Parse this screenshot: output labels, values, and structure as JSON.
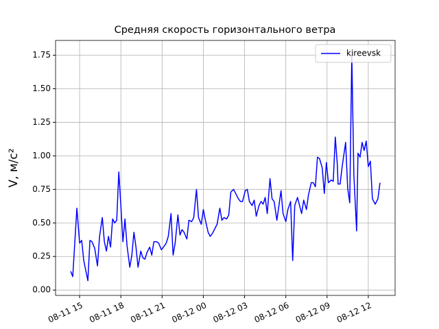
{
  "chart_data": {
    "type": "line",
    "title": "Средняя скорость горизонтального ветра",
    "ylabel": "V, м/с²",
    "x": [
      "08-11 14:21",
      "08-11 14:30",
      "08-11 14:48",
      "08-11 15:00",
      "08-11 15:09",
      "08-11 15:18",
      "08-11 15:36",
      "08-11 15:45",
      "08-11 15:54",
      "08-11 16:06",
      "08-11 16:18",
      "08-11 16:27",
      "08-11 16:39",
      "08-11 16:48",
      "08-11 16:57",
      "08-11 17:06",
      "08-11 17:15",
      "08-11 17:24",
      "08-11 17:33",
      "08-11 17:42",
      "08-11 17:51",
      "08-11 18:00",
      "08-11 18:09",
      "08-11 18:18",
      "08-11 18:27",
      "08-11 18:39",
      "08-11 18:48",
      "08-11 18:57",
      "08-11 19:06",
      "08-11 19:15",
      "08-11 19:27",
      "08-11 19:36",
      "08-11 19:45",
      "08-11 19:54",
      "08-11 20:06",
      "08-11 20:15",
      "08-11 20:24",
      "08-11 20:36",
      "08-11 20:45",
      "08-11 20:57",
      "08-11 21:06",
      "08-11 21:18",
      "08-11 21:27",
      "08-11 21:39",
      "08-11 21:48",
      "08-11 21:57",
      "08-11 22:09",
      "08-11 22:18",
      "08-11 22:27",
      "08-11 22:36",
      "08-11 22:48",
      "08-11 22:57",
      "08-11 23:09",
      "08-11 23:18",
      "08-11 23:30",
      "08-11 23:39",
      "08-11 23:51",
      "08-12 00:00",
      "08-12 00:09",
      "08-12 00:21",
      "08-12 00:30",
      "08-12 00:39",
      "08-12 00:51",
      "08-12 01:00",
      "08-12 01:12",
      "08-12 01:21",
      "08-12 01:30",
      "08-12 01:42",
      "08-12 01:51",
      "08-12 02:00",
      "08-12 02:12",
      "08-12 02:21",
      "08-12 02:33",
      "08-12 02:42",
      "08-12 02:51",
      "08-12 03:03",
      "08-12 03:12",
      "08-12 03:21",
      "08-12 03:33",
      "08-12 03:42",
      "08-12 03:51",
      "08-12 04:03",
      "08-12 04:12",
      "08-12 04:21",
      "08-12 04:30",
      "08-12 04:39",
      "08-12 04:51",
      "08-12 05:00",
      "08-12 05:09",
      "08-12 05:21",
      "08-12 05:30",
      "08-12 05:39",
      "08-12 05:48",
      "08-12 06:00",
      "08-12 06:09",
      "08-12 06:21",
      "08-12 06:30",
      "08-12 06:39",
      "08-12 06:51",
      "08-12 07:00",
      "08-12 07:09",
      "08-12 07:18",
      "08-12 07:30",
      "08-12 07:39",
      "08-12 07:51",
      "08-12 08:00",
      "08-12 08:09",
      "08-12 08:18",
      "08-12 08:27",
      "08-12 08:39",
      "08-12 08:48",
      "08-12 08:57",
      "08-12 09:06",
      "08-12 09:18",
      "08-12 09:27",
      "08-12 09:36",
      "08-12 09:45",
      "08-12 09:48",
      "08-12 09:57",
      "08-12 10:06",
      "08-12 10:21",
      "08-12 10:30",
      "08-12 10:39",
      "08-12 10:48",
      "08-12 10:57",
      "08-12 11:09",
      "08-12 11:15",
      "08-12 11:24",
      "08-12 11:33",
      "08-12 11:42",
      "08-12 11:51",
      "08-12 12:00",
      "08-12 12:09",
      "08-12 12:18",
      "08-12 12:30",
      "08-12 12:42",
      "08-12 12:51"
    ],
    "series": [
      {
        "name": "kireevsk",
        "color": "#0000ff",
        "values": [
          0.14,
          0.1,
          0.61,
          0.35,
          0.37,
          0.22,
          0.07,
          0.37,
          0.36,
          0.31,
          0.18,
          0.4,
          0.54,
          0.36,
          0.29,
          0.4,
          0.32,
          0.53,
          0.5,
          0.52,
          0.88,
          0.63,
          0.36,
          0.53,
          0.33,
          0.17,
          0.26,
          0.43,
          0.32,
          0.17,
          0.29,
          0.24,
          0.23,
          0.28,
          0.32,
          0.26,
          0.36,
          0.36,
          0.35,
          0.3,
          0.32,
          0.35,
          0.4,
          0.57,
          0.26,
          0.35,
          0.56,
          0.41,
          0.45,
          0.43,
          0.38,
          0.52,
          0.51,
          0.54,
          0.75,
          0.54,
          0.49,
          0.6,
          0.52,
          0.43,
          0.4,
          0.42,
          0.46,
          0.49,
          0.61,
          0.52,
          0.54,
          0.53,
          0.56,
          0.73,
          0.75,
          0.72,
          0.68,
          0.66,
          0.66,
          0.74,
          0.75,
          0.66,
          0.63,
          0.67,
          0.55,
          0.63,
          0.66,
          0.64,
          0.69,
          0.57,
          0.83,
          0.68,
          0.66,
          0.52,
          0.63,
          0.74,
          0.57,
          0.51,
          0.6,
          0.66,
          0.22,
          0.63,
          0.69,
          0.63,
          0.57,
          0.67,
          0.6,
          0.71,
          0.8,
          0.8,
          0.77,
          0.99,
          0.98,
          0.91,
          0.72,
          0.95,
          0.8,
          0.82,
          0.81,
          1.14,
          0.93,
          0.79,
          0.79,
          0.92,
          1.1,
          0.76,
          0.65,
          1.75,
          0.86,
          0.44,
          1.02,
          0.99,
          1.1,
          1.04,
          1.11,
          0.92,
          0.96,
          0.68,
          0.64,
          0.68,
          0.8
        ]
      }
    ],
    "xlim": [
      "08-11 13:15",
      "08-12 13:57"
    ],
    "xticks": [
      "08-11 15",
      "08-11 18",
      "08-11 21",
      "08-12 00",
      "08-12 03",
      "08-12 06",
      "08-12 09",
      "08-12 12"
    ],
    "ylim": [
      -0.04,
      1.86
    ],
    "yticks": [
      {
        "value": 0,
        "label": "0.00"
      },
      {
        "value": 0.25,
        "label": "0.25"
      },
      {
        "value": 0.5,
        "label": "0.50"
      },
      {
        "value": 0.75,
        "label": "0.75"
      },
      {
        "value": 1,
        "label": "1.00"
      },
      {
        "value": 1.25,
        "label": "1.25"
      },
      {
        "value": 1.5,
        "label": "1.50"
      },
      {
        "value": 1.75,
        "label": "1.75"
      }
    ],
    "grid": true,
    "legend": "upper right"
  }
}
